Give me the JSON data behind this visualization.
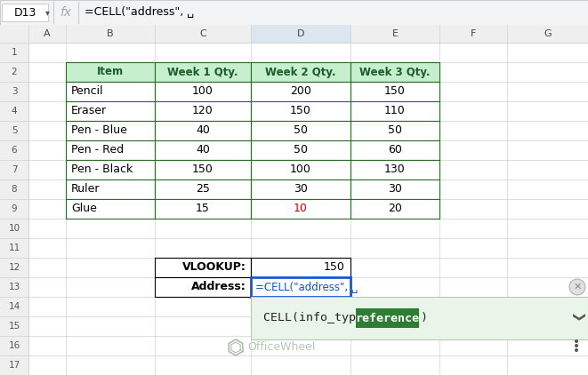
{
  "formula_bar_cell": "D13",
  "formula_bar_formula": "=CELL(\"address\", ␣",
  "col_headers": [
    "",
    "A",
    "B",
    "C",
    "D",
    "E",
    "F",
    "G"
  ],
  "table_headers": [
    "Item",
    "Week 1 Qty.",
    "Week 2 Qty.",
    "Week 3 Qty."
  ],
  "table_data": [
    [
      "Pencil",
      "100",
      "200",
      "150"
    ],
    [
      "Eraser",
      "120",
      "150",
      "110"
    ],
    [
      "Pen - Blue",
      "40",
      "50",
      "50"
    ],
    [
      "Pen - Red",
      "40",
      "50",
      "60"
    ],
    [
      "Pen - Black",
      "150",
      "100",
      "130"
    ],
    [
      "Ruler",
      "25",
      "30",
      "30"
    ],
    [
      "Glue",
      "15",
      "10",
      "20"
    ]
  ],
  "vlookup_label": "VLOOKUP:",
  "vlookup_value": "150",
  "address_label": "Address:",
  "address_formula": "=CELL(\"address\", ␣",
  "tooltip_text": "CELL(info_type, ",
  "tooltip_highlight": "reference",
  "tooltip_end": ")",
  "header_bg": "#c6efce",
  "header_text_color": "#1a5c2a",
  "grid_color": "#d0d0d0",
  "col_header_bg": "#efefef",
  "row_header_bg": "#efefef",
  "selected_col_bg": "#dce6f1",
  "selected_cell_border": "#1558d6",
  "tooltip_bg": "#eaf5ea",
  "tooltip_green_bg": "#2e7d32",
  "tooltip_green_text": "#ffffff",
  "cell_text_color": "#000000",
  "formula_color": "#1155cc",
  "glue_week2_color": "#cc0000",
  "watermark_color": "#aabfaa",
  "bg_color": "#ffffff",
  "close_btn_color": "#888888",
  "chevron_color": "#555555",
  "dots_color": "#555555"
}
